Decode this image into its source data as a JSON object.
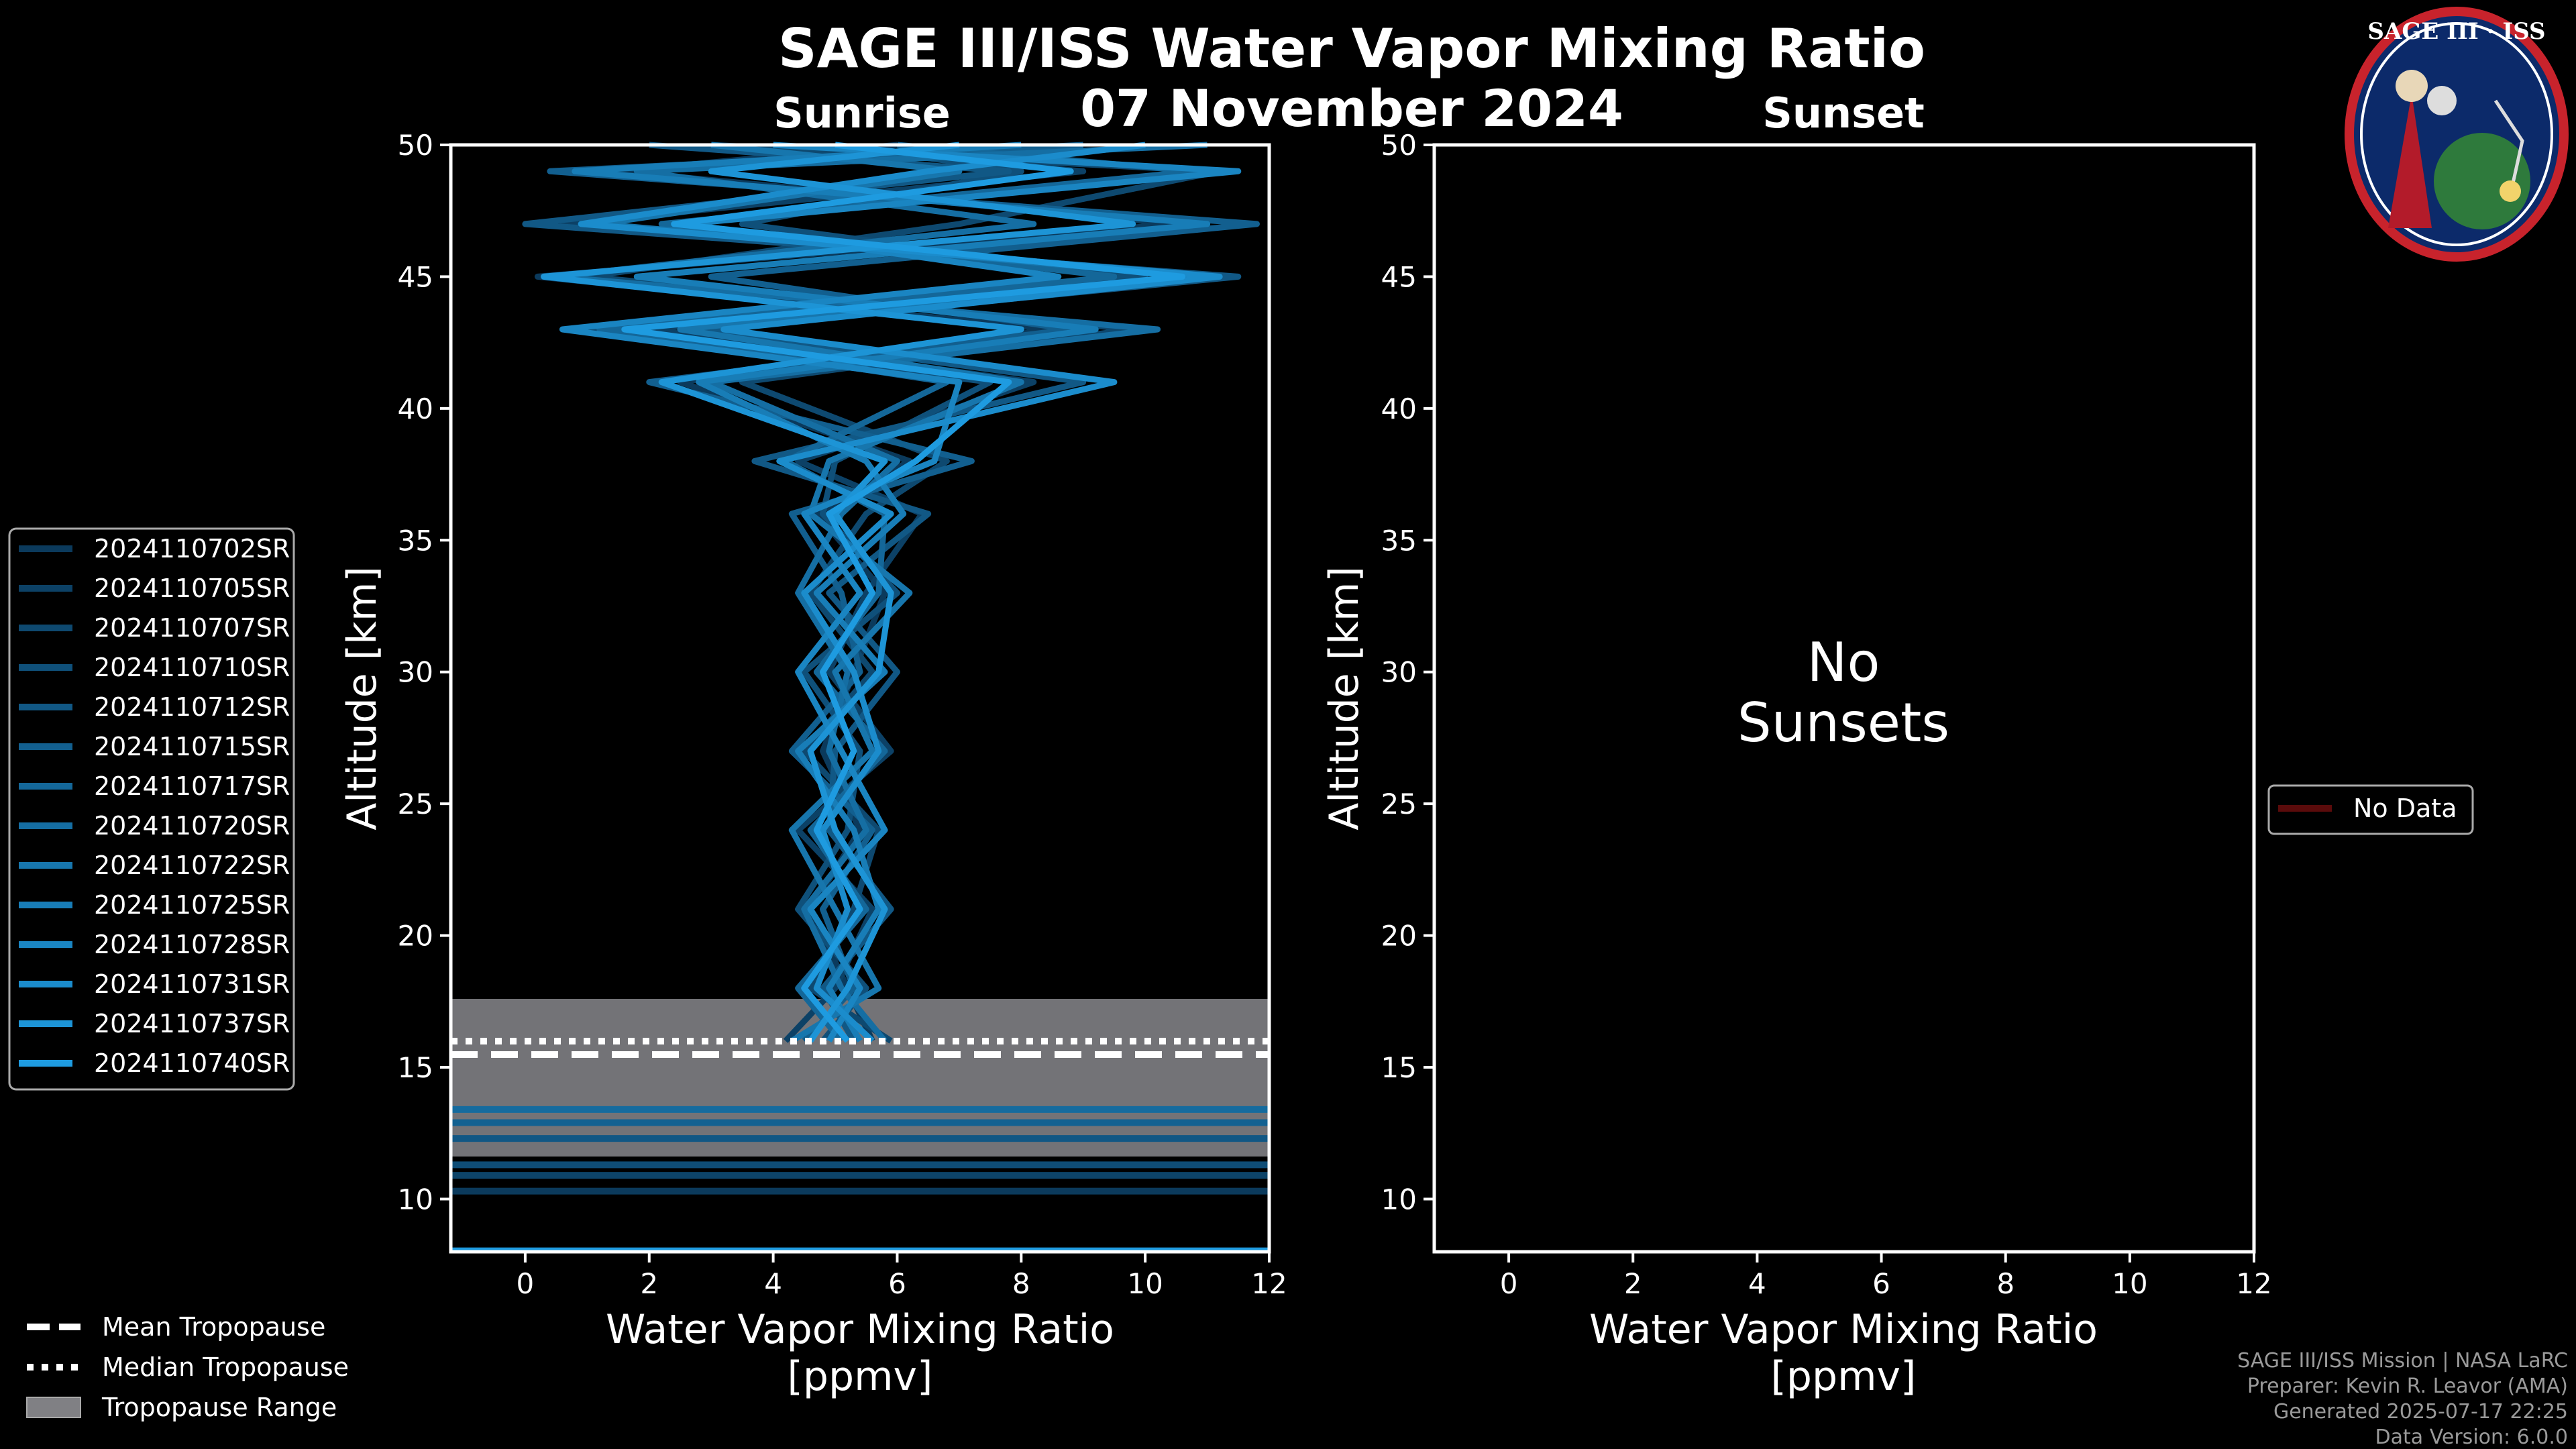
{
  "header": {
    "title": "SAGE III/ISS Water Vapor Mixing Ratio",
    "date": "07 November 2024",
    "left_panel": "Sunrise",
    "right_panel": "Sunset"
  },
  "badge": {
    "name": "SAGE III · ISS"
  },
  "colors": {
    "background": "#000000",
    "profile_dark": "#0b3a5c",
    "profile_light": "#1e9be0",
    "tropopause_range": "#808084",
    "no_data": "#5a0b0b"
  },
  "chart_data": [
    {
      "type": "line",
      "panel": "Sunrise",
      "xlabel": "Water Vapor Mixing Ratio",
      "xunits": "[ppmv]",
      "ylabel": "Altitude [km]",
      "xlim": [
        -1.2,
        12
      ],
      "ylim": [
        8,
        50
      ],
      "xticks": [
        0,
        2,
        4,
        6,
        8,
        10,
        12
      ],
      "yticks": [
        10,
        15,
        20,
        25,
        30,
        35,
        40,
        45,
        50
      ],
      "series": [
        {
          "name": "2024110702SR",
          "values": [
            [
              5.6,
              16
            ],
            [
              5.2,
              18
            ],
            [
              4.6,
              21
            ],
            [
              5.4,
              24
            ],
            [
              4.8,
              27
            ],
            [
              5.3,
              30
            ],
            [
              5.8,
              33
            ],
            [
              4.7,
              36
            ],
            [
              6.2,
              38
            ],
            [
              2.5,
              41
            ],
            [
              8.5,
              43
            ],
            [
              0.2,
              45
            ],
            [
              10.5,
              47
            ],
            [
              1.5,
              49
            ],
            [
              6.0,
              50
            ]
          ]
        },
        {
          "name": "2024110705SR",
          "values": [
            [
              4.2,
              16
            ],
            [
              5.0,
              18
            ],
            [
              5.6,
              21
            ],
            [
              4.4,
              24
            ],
            [
              5.9,
              27
            ],
            [
              4.9,
              30
            ],
            [
              5.5,
              33
            ],
            [
              6.4,
              36
            ],
            [
              4.4,
              38
            ],
            [
              8.2,
              41
            ],
            [
              2.0,
              43
            ],
            [
              11.0,
              45
            ],
            [
              0.6,
              47
            ],
            [
              9.0,
              49
            ],
            [
              4.0,
              50
            ]
          ]
        },
        {
          "name": "2024110707SR",
          "values": [
            [
              5.9,
              16
            ],
            [
              4.6,
              18
            ],
            [
              5.3,
              21
            ],
            [
              5.7,
              24
            ],
            [
              4.5,
              27
            ],
            [
              5.6,
              30
            ],
            [
              4.6,
              33
            ],
            [
              5.5,
              36
            ],
            [
              6.8,
              38
            ],
            [
              3.5,
              41
            ],
            [
              9.8,
              43
            ],
            [
              1.0,
              45
            ],
            [
              7.0,
              47
            ],
            [
              11.2,
              49
            ],
            [
              3.0,
              50
            ]
          ]
        },
        {
          "name": "2024110710SR",
          "values": [
            [
              4.8,
              16
            ],
            [
              5.5,
              18
            ],
            [
              4.4,
              21
            ],
            [
              5.2,
              24
            ],
            [
              5.4,
              27
            ],
            [
              4.5,
              30
            ],
            [
              6.0,
              33
            ],
            [
              4.8,
              36
            ],
            [
              5.0,
              38
            ],
            [
              7.5,
              41
            ],
            [
              0.8,
              43
            ],
            [
              10.0,
              45
            ],
            [
              3.5,
              47
            ],
            [
              8.0,
              49
            ],
            [
              5.0,
              50
            ]
          ]
        },
        {
          "name": "2024110712SR",
          "values": [
            [
              5.3,
              16
            ],
            [
              4.8,
              18
            ],
            [
              5.9,
              21
            ],
            [
              4.9,
              24
            ],
            [
              5.0,
              27
            ],
            [
              6.0,
              30
            ],
            [
              4.9,
              33
            ],
            [
              6.5,
              36
            ],
            [
              3.7,
              38
            ],
            [
              9.0,
              41
            ],
            [
              2.8,
              43
            ],
            [
              11.5,
              45
            ],
            [
              0.0,
              47
            ],
            [
              7.8,
              49
            ],
            [
              2.0,
              50
            ]
          ]
        },
        {
          "name": "2024110715SR",
          "values": [
            [
              4.5,
              16
            ],
            [
              5.3,
              18
            ],
            [
              4.8,
              21
            ],
            [
              5.6,
              24
            ],
            [
              4.3,
              27
            ],
            [
              5.4,
              30
            ],
            [
              5.1,
              33
            ],
            [
              4.3,
              36
            ],
            [
              7.2,
              38
            ],
            [
              2.0,
              41
            ],
            [
              8.8,
              43
            ],
            [
              3.0,
              45
            ],
            [
              11.8,
              47
            ],
            [
              0.4,
              49
            ],
            [
              9.0,
              50
            ]
          ]
        },
        {
          "name": "2024110717SR",
          "values": [
            [
              5.1,
              16
            ],
            [
              4.4,
              18
            ],
            [
              5.5,
              21
            ],
            [
              4.6,
              24
            ],
            [
              5.8,
              27
            ],
            [
              4.7,
              30
            ],
            [
              5.7,
              33
            ],
            [
              5.8,
              36
            ],
            [
              4.2,
              38
            ],
            [
              6.8,
              41
            ],
            [
              1.2,
              43
            ],
            [
              9.5,
              45
            ],
            [
              2.2,
              47
            ],
            [
              10.8,
              49
            ],
            [
              6.0,
              50
            ]
          ]
        },
        {
          "name": "2024110720SR",
          "values": [
            [
              5.8,
              16
            ],
            [
              5.1,
              18
            ],
            [
              4.5,
              21
            ],
            [
              5.5,
              24
            ],
            [
              4.9,
              27
            ],
            [
              5.2,
              30
            ],
            [
              4.4,
              33
            ],
            [
              5.1,
              36
            ],
            [
              6.0,
              38
            ],
            [
              3.0,
              41
            ],
            [
              10.2,
              43
            ],
            [
              0.5,
              45
            ],
            [
              8.2,
              47
            ],
            [
              1.8,
              49
            ],
            [
              11.0,
              50
            ]
          ]
        },
        {
          "name": "2024110722SR",
          "values": [
            [
              4.3,
              16
            ],
            [
              5.7,
              18
            ],
            [
              5.0,
              21
            ],
            [
              4.3,
              24
            ],
            [
              5.6,
              27
            ],
            [
              5.0,
              30
            ],
            [
              6.2,
              33
            ],
            [
              4.6,
              36
            ],
            [
              4.9,
              38
            ],
            [
              8.0,
              41
            ],
            [
              2.5,
              43
            ],
            [
              10.8,
              45
            ],
            [
              1.2,
              47
            ],
            [
              7.0,
              49
            ],
            [
              3.0,
              50
            ]
          ]
        },
        {
          "name": "2024110725SR",
          "values": [
            [
              5.4,
              16
            ],
            [
              4.9,
              18
            ],
            [
              5.7,
              21
            ],
            [
              5.3,
              24
            ],
            [
              4.4,
              27
            ],
            [
              5.8,
              30
            ],
            [
              4.7,
              33
            ],
            [
              6.1,
              36
            ],
            [
              5.5,
              38
            ],
            [
              2.8,
              41
            ],
            [
              9.2,
              43
            ],
            [
              1.8,
              45
            ],
            [
              11.0,
              47
            ],
            [
              0.8,
              49
            ],
            [
              8.0,
              50
            ]
          ]
        },
        {
          "name": "2024110728SR",
          "values": [
            [
              4.9,
              16
            ],
            [
              5.4,
              18
            ],
            [
              4.6,
              21
            ],
            [
              5.8,
              24
            ],
            [
              5.1,
              27
            ],
            [
              4.4,
              30
            ],
            [
              5.4,
              33
            ],
            [
              4.5,
              36
            ],
            [
              6.6,
              38
            ],
            [
              7.0,
              41
            ],
            [
              0.6,
              43
            ],
            [
              8.6,
              45
            ],
            [
              2.6,
              47
            ],
            [
              11.5,
              49
            ],
            [
              4.0,
              50
            ]
          ]
        },
        {
          "name": "2024110731SR",
          "values": [
            [
              5.6,
              16
            ],
            [
              4.7,
              18
            ],
            [
              5.2,
              21
            ],
            [
              4.8,
              24
            ],
            [
              5.7,
              27
            ],
            [
              5.3,
              30
            ],
            [
              4.5,
              33
            ],
            [
              5.9,
              36
            ],
            [
              4.1,
              38
            ],
            [
              9.5,
              41
            ],
            [
              3.2,
              43
            ],
            [
              11.2,
              45
            ],
            [
              0.9,
              47
            ],
            [
              6.5,
              49
            ],
            [
              10.0,
              50
            ]
          ]
        },
        {
          "name": "2024110737SR",
          "values": [
            [
              4.6,
              16
            ],
            [
              5.2,
              18
            ],
            [
              5.8,
              21
            ],
            [
              5.0,
              24
            ],
            [
              4.6,
              27
            ],
            [
              5.7,
              30
            ],
            [
              5.9,
              33
            ],
            [
              5.0,
              36
            ],
            [
              5.8,
              38
            ],
            [
              2.2,
              41
            ],
            [
              8.0,
              43
            ],
            [
              0.3,
              45
            ],
            [
              9.8,
              47
            ],
            [
              3.0,
              49
            ],
            [
              7.0,
              50
            ]
          ]
        },
        {
          "name": "2024110740SR",
          "values": [
            [
              5.2,
              16
            ],
            [
              4.5,
              18
            ],
            [
              5.4,
              21
            ],
            [
              4.7,
              24
            ],
            [
              5.3,
              27
            ],
            [
              4.8,
              30
            ],
            [
              5.6,
              33
            ],
            [
              4.9,
              36
            ],
            [
              6.3,
              38
            ],
            [
              7.8,
              41
            ],
            [
              1.6,
              43
            ],
            [
              10.6,
              45
            ],
            [
              2.4,
              47
            ],
            [
              8.8,
              49
            ],
            [
              5.0,
              50
            ]
          ]
        }
      ],
      "tropopause": {
        "mean_km": 15.5,
        "median_km": 16.1,
        "range_km": [
          11.6,
          17.7
        ]
      },
      "legend": {
        "placement": "left"
      }
    },
    {
      "type": "line",
      "panel": "Sunset",
      "xlabel": "Water Vapor Mixing Ratio",
      "xunits": "[ppmv]",
      "ylabel": "Altitude [km]",
      "xlim": [
        -1.2,
        12
      ],
      "ylim": [
        8,
        50
      ],
      "xticks": [
        0,
        2,
        4,
        6,
        8,
        10,
        12
      ],
      "yticks": [
        10,
        15,
        20,
        25,
        30,
        35,
        40,
        45,
        50
      ],
      "annotation_line1": "No",
      "annotation_line2": "Sunsets",
      "series": [],
      "legend": {
        "placement": "right",
        "entries": [
          "No Data"
        ]
      }
    }
  ],
  "tropopause_legend": {
    "mean": "Mean Tropopause",
    "median": "Median Tropopause",
    "range": "Tropopause Range"
  },
  "credits": {
    "line1": "SAGE III/ISS Mission | NASA LaRC",
    "line2": "Preparer: Kevin R. Leavor (AMA)",
    "line3": "Generated 2025-07-17 22:25",
    "line4": "Data Version: 6.0.0"
  }
}
